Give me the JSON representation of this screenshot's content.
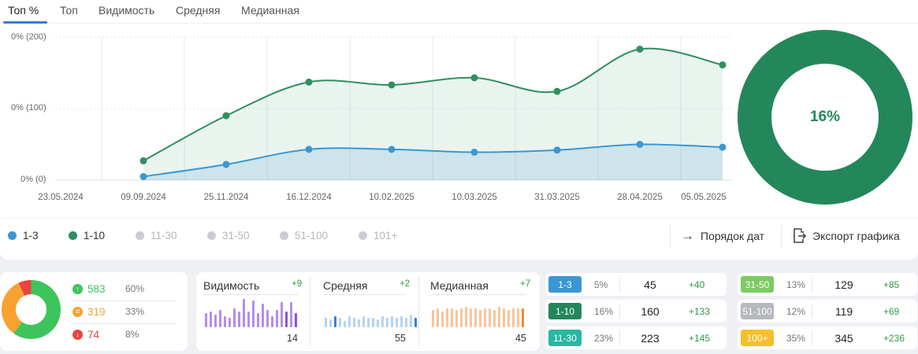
{
  "tabs": [
    {
      "label": "Топ %",
      "active": true
    },
    {
      "label": "Топ"
    },
    {
      "label": "Видимость"
    },
    {
      "label": "Средняя"
    },
    {
      "label": "Медианная"
    }
  ],
  "chart_data": {
    "type": "area",
    "y_ticks": [
      "0% (200)",
      "0% (100)",
      "0% (0)"
    ],
    "categories": [
      "23.05.2024",
      "09.09.2024",
      "25.11.2024",
      "16.12.2024",
      "10.02.2025",
      "10.03.2025",
      "31.03.2025",
      "28.04.2025",
      "05.05.2025"
    ],
    "ylim": [
      0,
      200
    ],
    "series": [
      {
        "name": "1-10",
        "color": "#2f8f5f",
        "values": [
          null,
          27,
          90,
          137,
          133,
          143,
          124,
          183,
          161
        ]
      },
      {
        "name": "1-3",
        "color": "#3b97d3",
        "values": [
          null,
          5,
          22,
          43,
          43,
          39,
          42,
          50,
          46
        ]
      }
    ]
  },
  "donut": {
    "label": "16%",
    "color": "#23875b"
  },
  "legend": [
    {
      "label": "1-3",
      "color": "#3b97d3",
      "active": true
    },
    {
      "label": "1-10",
      "color": "#2f8f5f",
      "active": true
    },
    {
      "label": "11-30",
      "color": "#c9ccd2",
      "active": false
    },
    {
      "label": "31-50",
      "color": "#c9ccd2",
      "active": false
    },
    {
      "label": "51-100",
      "color": "#c9ccd2",
      "active": false
    },
    {
      "label": "101+",
      "color": "#c9ccd2",
      "active": false
    }
  ],
  "actions": {
    "date_order": "Порядок дат",
    "export": "Экспорт графика"
  },
  "summary": {
    "rows": [
      {
        "count": "583",
        "pct": "60%",
        "color": "#3ec45c",
        "icon": "arrow-up-icon"
      },
      {
        "count": "319",
        "pct": "33%",
        "color": "#f7a231",
        "icon": "equal-icon"
      },
      {
        "count": "74",
        "pct": "8%",
        "color": "#e8433f",
        "icon": "arrow-down-icon"
      }
    ]
  },
  "metrics": [
    {
      "title": "Видимость",
      "delta": "+9",
      "value": "14",
      "color": "#b48ee6",
      "accent": "#8a52d4",
      "bars": [
        0.45,
        0.5,
        0.4,
        0.55,
        0.35,
        0.3,
        0.6,
        0.5,
        0.9,
        0.5,
        0.85,
        0.45,
        0.75,
        0.55,
        0.35,
        0.55,
        0.8,
        0.5,
        0.8,
        0.45
      ]
    },
    {
      "title": "Средняя",
      "delta": "+2",
      "value": "55",
      "color": "#b5d4ef",
      "accent": "#3a7fc8",
      "bars": [
        0.3,
        0.25,
        0.35,
        0.3,
        0.2,
        0.35,
        0.3,
        0.25,
        0.35,
        0.3,
        0.3,
        0.25,
        0.35,
        0.3,
        0.35,
        0.3,
        0.35,
        0.3,
        0.4,
        0.3
      ]
    },
    {
      "title": "Медианная",
      "delta": "+7",
      "value": "45",
      "color": "#f6c69a",
      "accent": "#ee8a2e",
      "bars": [
        0.55,
        0.6,
        0.5,
        0.6,
        0.6,
        0.55,
        0.6,
        0.65,
        0.6,
        0.6,
        0.55,
        0.6,
        0.6,
        0.55,
        0.65,
        0.6,
        0.55,
        0.6,
        0.6,
        0.6
      ]
    }
  ],
  "ranges_left": [
    {
      "label": "1-3",
      "pct": "5%",
      "value": "45",
      "delta": "+40",
      "color": "#3b97d3"
    },
    {
      "label": "1-10",
      "pct": "16%",
      "value": "160",
      "delta": "+133",
      "color": "#23875b"
    },
    {
      "label": "11-30",
      "pct": "23%",
      "value": "223",
      "delta": "+145",
      "color": "#28b7a2"
    }
  ],
  "ranges_right": [
    {
      "label": "31-50",
      "pct": "13%",
      "value": "129",
      "delta": "+85",
      "color": "#7ccb62"
    },
    {
      "label": "51-100",
      "pct": "12%",
      "value": "119",
      "delta": "+69",
      "color": "#b5b8bd"
    },
    {
      "label": "100+",
      "pct": "35%",
      "value": "345",
      "delta": "+236",
      "color": "#f5bf2b"
    }
  ]
}
